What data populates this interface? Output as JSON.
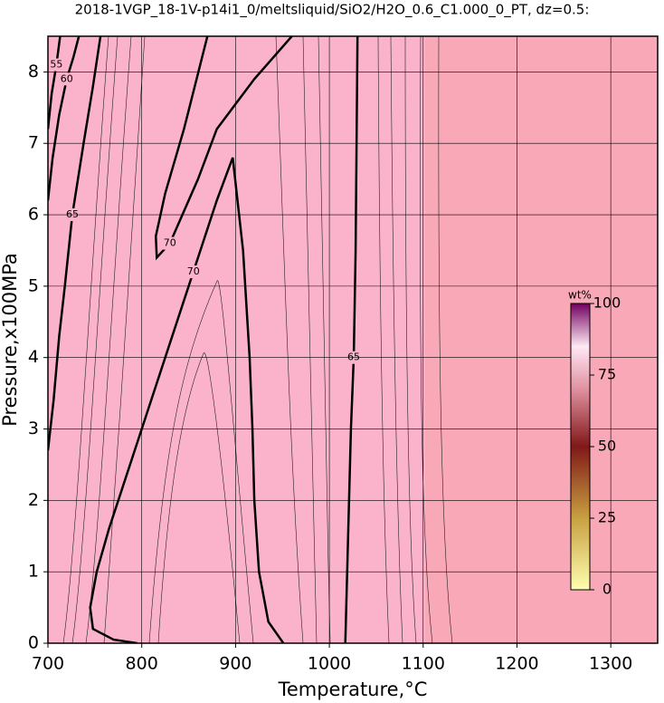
{
  "chart_data": {
    "type": "contour",
    "title": "2018-1VGP_18-1V-p14i1_0/meltsliquid/SiO2/H2O_0.6_C1.000_0_PT, dz=0.5:",
    "xlabel": "Temperature,°C",
    "ylabel": "Pressure,x100MPa",
    "xlim": [
      700,
      1350
    ],
    "ylim": [
      0,
      8.5
    ],
    "xticks": [
      700,
      800,
      900,
      1000,
      1100,
      1200,
      1300
    ],
    "yticks": [
      0,
      1,
      2,
      3,
      4,
      5,
      6,
      7,
      8
    ],
    "grid": true,
    "contours": [
      {
        "level": 65,
        "color": "#000000",
        "x": [
          1017,
          1018,
          1020,
          1023,
          1026,
          1028,
          1029,
          1030
        ],
        "y": [
          0,
          0.5,
          1.5,
          3,
          4,
          5.5,
          7,
          8.5
        ]
      },
      {
        "level": 70,
        "color": "#000000",
        "x": [
          951,
          935,
          925,
          920,
          918,
          915,
          908,
          897,
          880,
          855,
          830,
          805,
          785,
          765,
          752,
          745,
          748,
          770,
          795
        ],
        "y": [
          0,
          0.3,
          1,
          2,
          3,
          4,
          5.5,
          6.8,
          6.2,
          5.2,
          4.2,
          3.2,
          2.4,
          1.6,
          1,
          0.5,
          0.2,
          0.05,
          0
        ]
      },
      {
        "level": 70,
        "color": "#000000",
        "x": [
          870,
          845,
          825,
          815,
          816,
          830,
          860,
          880,
          920,
          960
        ],
        "y": [
          8.5,
          7.2,
          6.3,
          5.7,
          5.4,
          5.6,
          6.5,
          7.2,
          7.9,
          8.5
        ]
      },
      {
        "level": 65,
        "color": "#000000",
        "x": [
          700,
          706,
          712,
          718,
          726,
          738,
          748,
          756
        ],
        "y": [
          2.7,
          3.4,
          4.3,
          5,
          6,
          7,
          7.8,
          8.5
        ]
      },
      {
        "level": 60,
        "color": "#000000",
        "x": [
          700,
          705,
          712,
          720,
          727,
          733
        ],
        "y": [
          6.2,
          6.8,
          7.4,
          7.9,
          8.2,
          8.5
        ]
      },
      {
        "level": 55,
        "color": "#000000",
        "x": [
          700,
          704,
          709,
          713
        ],
        "y": [
          7.2,
          7.7,
          8.1,
          8.5
        ]
      }
    ],
    "colorbar": {
      "label": "wt%",
      "lim": [
        0,
        100
      ],
      "ticks": [
        0,
        25,
        50,
        75,
        100
      ]
    }
  }
}
